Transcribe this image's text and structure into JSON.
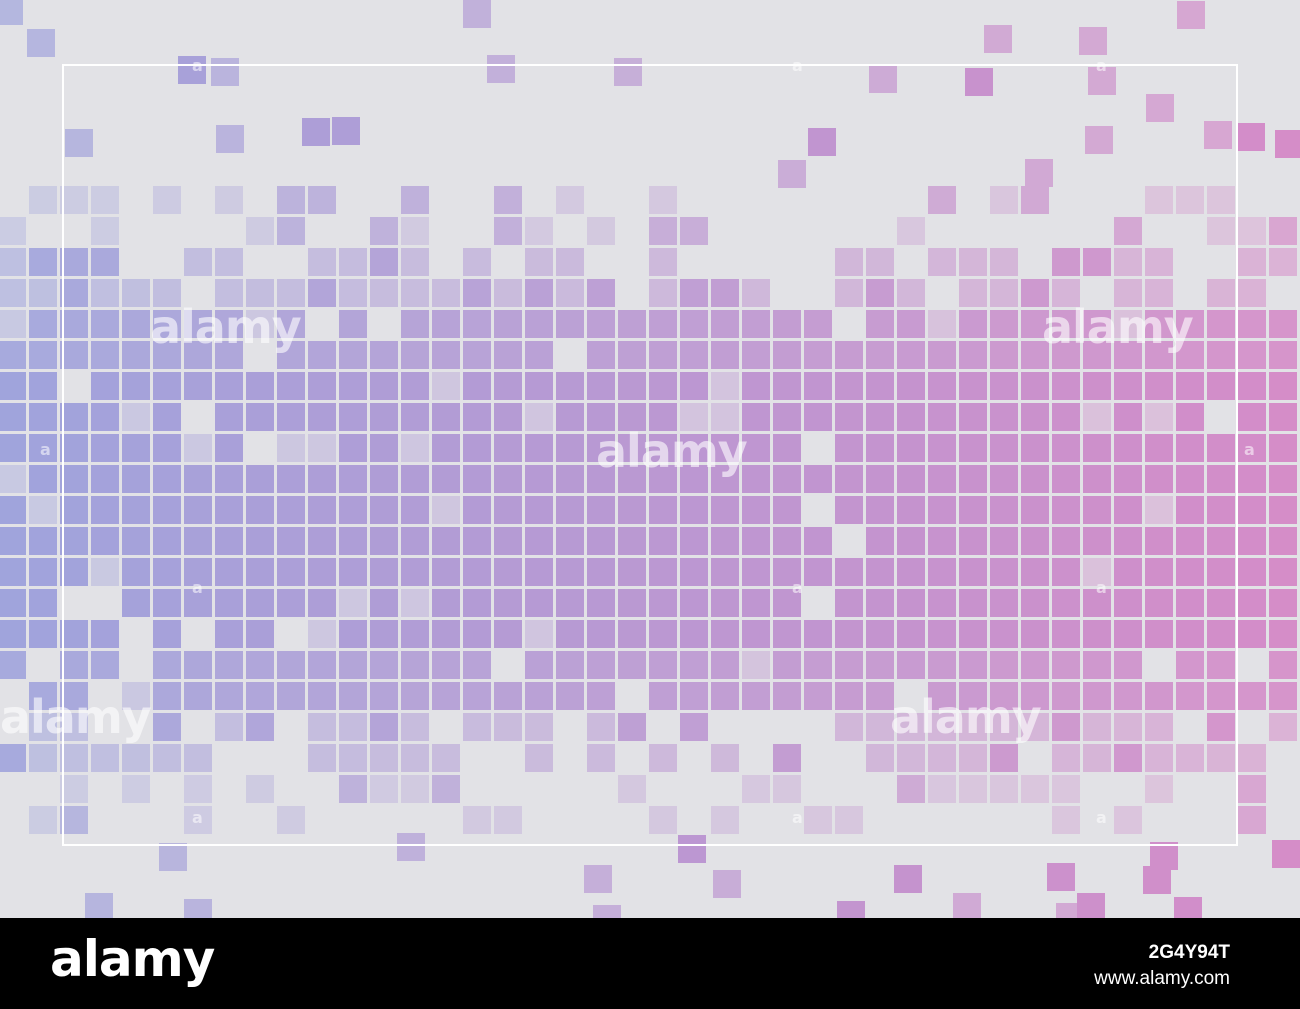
{
  "image": {
    "description_colors": {
      "background": "#e2e2e6",
      "tile_left": "#a0a4dc",
      "tile_right": "#d68cc8",
      "frame": "#ffffff"
    }
  },
  "watermark": {
    "text": "alamy",
    "anchor_glyph": "a"
  },
  "footer": {
    "logo": "alamy",
    "image_id": "2G4Y94T",
    "url": "www.alamy.com"
  }
}
